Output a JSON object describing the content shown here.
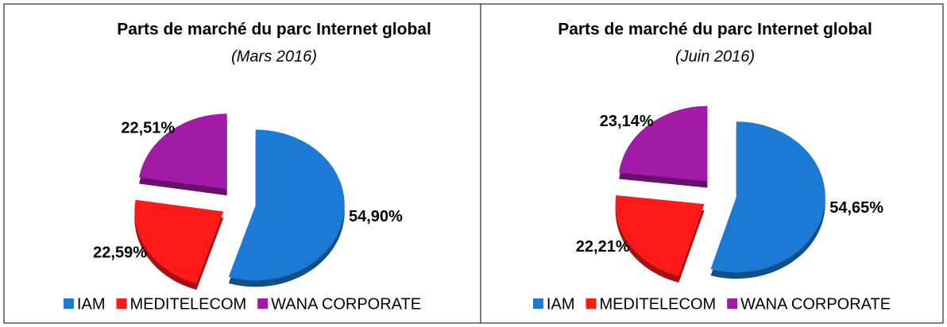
{
  "chart_data": [
    {
      "type": "pie",
      "title": "Parts de marché du parc Internet global",
      "subtitle": "(Mars 2016)",
      "categories": [
        "IAM",
        "MEDITELECOM",
        "WANA CORPORATE"
      ],
      "values": [
        54.9,
        22.59,
        22.51
      ],
      "value_labels": [
        "54,90%",
        "22,59%",
        "22,51%"
      ],
      "colors": [
        "#1a7ad4",
        "#ff1a1a",
        "#a01aa6"
      ],
      "legend": "bottom"
    },
    {
      "type": "pie",
      "title": "Parts de marché du parc Internet global",
      "subtitle": "(Juin 2016)",
      "categories": [
        "IAM",
        "MEDITELECOM",
        "WANA CORPORATE"
      ],
      "values": [
        54.65,
        22.21,
        23.14
      ],
      "value_labels": [
        "54,65%",
        "22,21%",
        "23,14%"
      ],
      "colors": [
        "#1a7ad4",
        "#ff1a1a",
        "#a01aa6"
      ],
      "legend": "bottom"
    }
  ]
}
